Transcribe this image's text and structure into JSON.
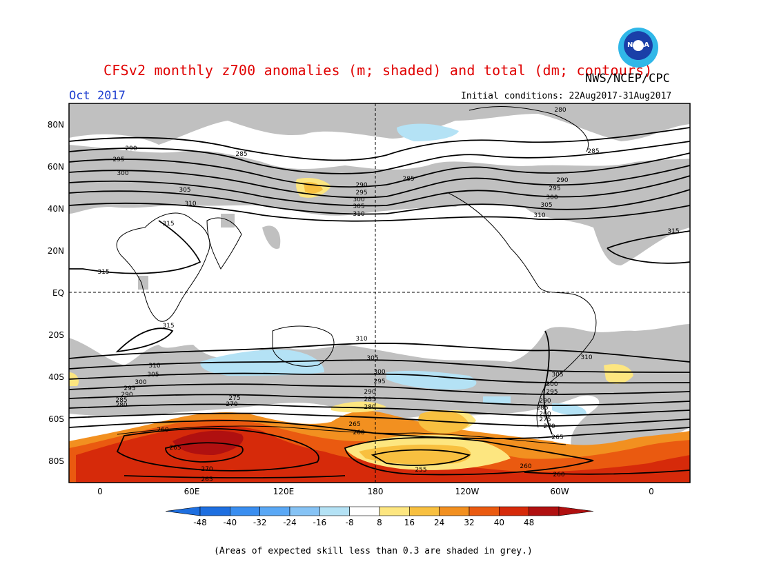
{
  "header": {
    "title": "CFSv2 monthly z700 anomalies (m; shaded) and total (dm; contours)",
    "agency": "NWS/NCEP/CPC",
    "logo_text": "NOAA",
    "month": "Oct 2017",
    "initial_conditions": "Initial conditions: 22Aug2017-31Aug2017"
  },
  "map": {
    "lat_labels": [
      "80N",
      "60N",
      "40N",
      "20N",
      "EQ",
      "20S",
      "40S",
      "60S",
      "80S"
    ],
    "lon_labels": [
      "0",
      "60E",
      "120E",
      "180",
      "120W",
      "60W",
      "0"
    ],
    "contour_labels": [
      "280",
      "285",
      "290",
      "295",
      "300",
      "305",
      "310",
      "315",
      "275",
      "270",
      "265",
      "260",
      "255"
    ],
    "colors": {
      "skill_grey": "#c0c0c0",
      "land": "#000000",
      "contour": "#000000"
    }
  },
  "colorbar": {
    "ticks": [
      "-48",
      "-40",
      "-32",
      "-24",
      "-16",
      "-8",
      "8",
      "16",
      "24",
      "32",
      "40",
      "48"
    ],
    "colors": [
      "#1e6fe0",
      "#3a8ef0",
      "#5aa8f5",
      "#86c3f5",
      "#b4e2f5",
      "#ffffff",
      "#fde680",
      "#f8c040",
      "#f29020",
      "#ea5a10",
      "#d62a0a",
      "#b01010"
    ]
  },
  "footnote": "(Areas of expected skill less than 0.3 are shaded in grey.)"
}
